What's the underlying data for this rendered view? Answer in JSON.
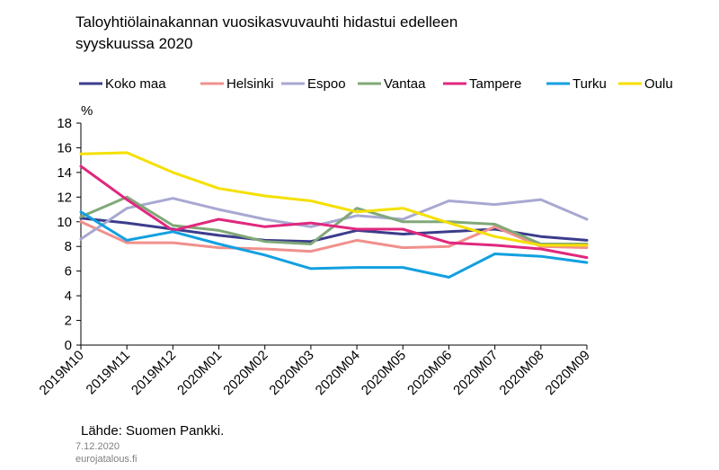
{
  "chart_data": {
    "type": "line",
    "title_lines": [
      "Taloyhtiölainakannan vuosikasvuvauhti hidastui edelleen",
      "syyskuussa 2020"
    ],
    "ylabel": "%",
    "xlabel": "",
    "ylim": [
      0,
      18
    ],
    "yticks": [
      0,
      2,
      4,
      6,
      8,
      10,
      12,
      14,
      16,
      18
    ],
    "categories": [
      "2019M10",
      "2019M11",
      "2019M12",
      "2020M01",
      "2020M02",
      "2020M03",
      "2020M04",
      "2020M05",
      "2020M06",
      "2020M07",
      "2020M08",
      "2020M09"
    ],
    "series": [
      {
        "name": "Koko maa",
        "color": "#3c3c8c",
        "values": [
          10.3,
          9.9,
          9.4,
          8.9,
          8.5,
          8.4,
          9.3,
          9.0,
          9.2,
          9.4,
          8.8,
          8.5
        ]
      },
      {
        "name": "Helsinki",
        "color": "#f0908c",
        "values": [
          10.0,
          8.3,
          8.3,
          7.9,
          7.8,
          7.6,
          8.5,
          7.9,
          8.0,
          9.6,
          8.0,
          7.9
        ]
      },
      {
        "name": "Espoo",
        "color": "#a8a8d2",
        "values": [
          8.6,
          11.1,
          11.9,
          11.0,
          10.2,
          9.6,
          10.5,
          10.2,
          11.7,
          11.4,
          11.8,
          10.2
        ]
      },
      {
        "name": "Vantaa",
        "color": "#80a878",
        "values": [
          10.4,
          12.0,
          9.7,
          9.3,
          8.4,
          8.2,
          11.1,
          10.0,
          10.0,
          9.8,
          8.2,
          8.2
        ]
      },
      {
        "name": "Tampere",
        "color": "#e0287e",
        "values": [
          14.5,
          11.8,
          9.3,
          10.2,
          9.6,
          9.9,
          9.4,
          9.4,
          8.3,
          8.1,
          7.8,
          7.1
        ]
      },
      {
        "name": "Turku",
        "color": "#12a0e0",
        "values": [
          10.8,
          8.5,
          9.2,
          8.2,
          7.3,
          6.2,
          6.3,
          6.3,
          5.5,
          7.4,
          7.2,
          6.7
        ]
      },
      {
        "name": "Oulu",
        "color": "#f5e000",
        "values": [
          15.5,
          15.6,
          14.0,
          12.7,
          12.1,
          11.7,
          10.8,
          11.1,
          9.9,
          8.8,
          8.1,
          8.1
        ]
      }
    ],
    "legend_position": "top"
  },
  "footer": {
    "source": "Lähde: Suomen Pankki.",
    "date": "7.12.2020",
    "site": "eurojatalous.fi"
  }
}
